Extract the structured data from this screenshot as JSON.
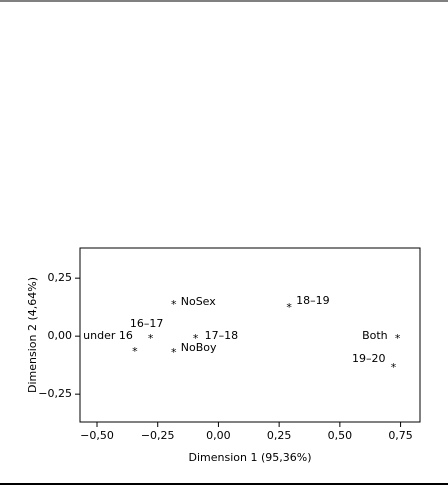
{
  "chart_data": {
    "type": "scatter",
    "x_label": "Dimension 1 (95,36%)",
    "y_label": "Dimension 2 (4,64%)",
    "labels": [
      "NoSex",
      "18–19",
      "16–17",
      "under 16",
      "17–18",
      "NoBoy",
      "Both",
      "19–20"
    ],
    "x": [
      -0.184,
      0.291,
      -0.279,
      -0.344,
      -0.094,
      -0.184,
      0.738,
      0.721
    ],
    "y": [
      0.147,
      0.134,
      0.0,
      -0.056,
      0.0,
      -0.06,
      0.0,
      -0.125
    ],
    "marker": "*",
    "color": "#000000",
    "xlim": [
      -0.57,
      0.83
    ],
    "ylim": [
      -0.37,
      0.38
    ],
    "xticks": [
      {
        "value": -0.5,
        "label": "−0,50"
      },
      {
        "value": -0.25,
        "label": "−0,25"
      },
      {
        "value": 0,
        "label": "0,00"
      },
      {
        "value": 0.25,
        "label": "0,25"
      },
      {
        "value": 0.5,
        "label": "0,50"
      },
      {
        "value": 0.75,
        "label": "0,75"
      }
    ],
    "yticks": [
      {
        "value": -0.25,
        "label": "−0,25"
      },
      {
        "value": 0,
        "label": "0,00"
      },
      {
        "value": 0.25,
        "label": "0,25"
      }
    ],
    "grid": false
  }
}
